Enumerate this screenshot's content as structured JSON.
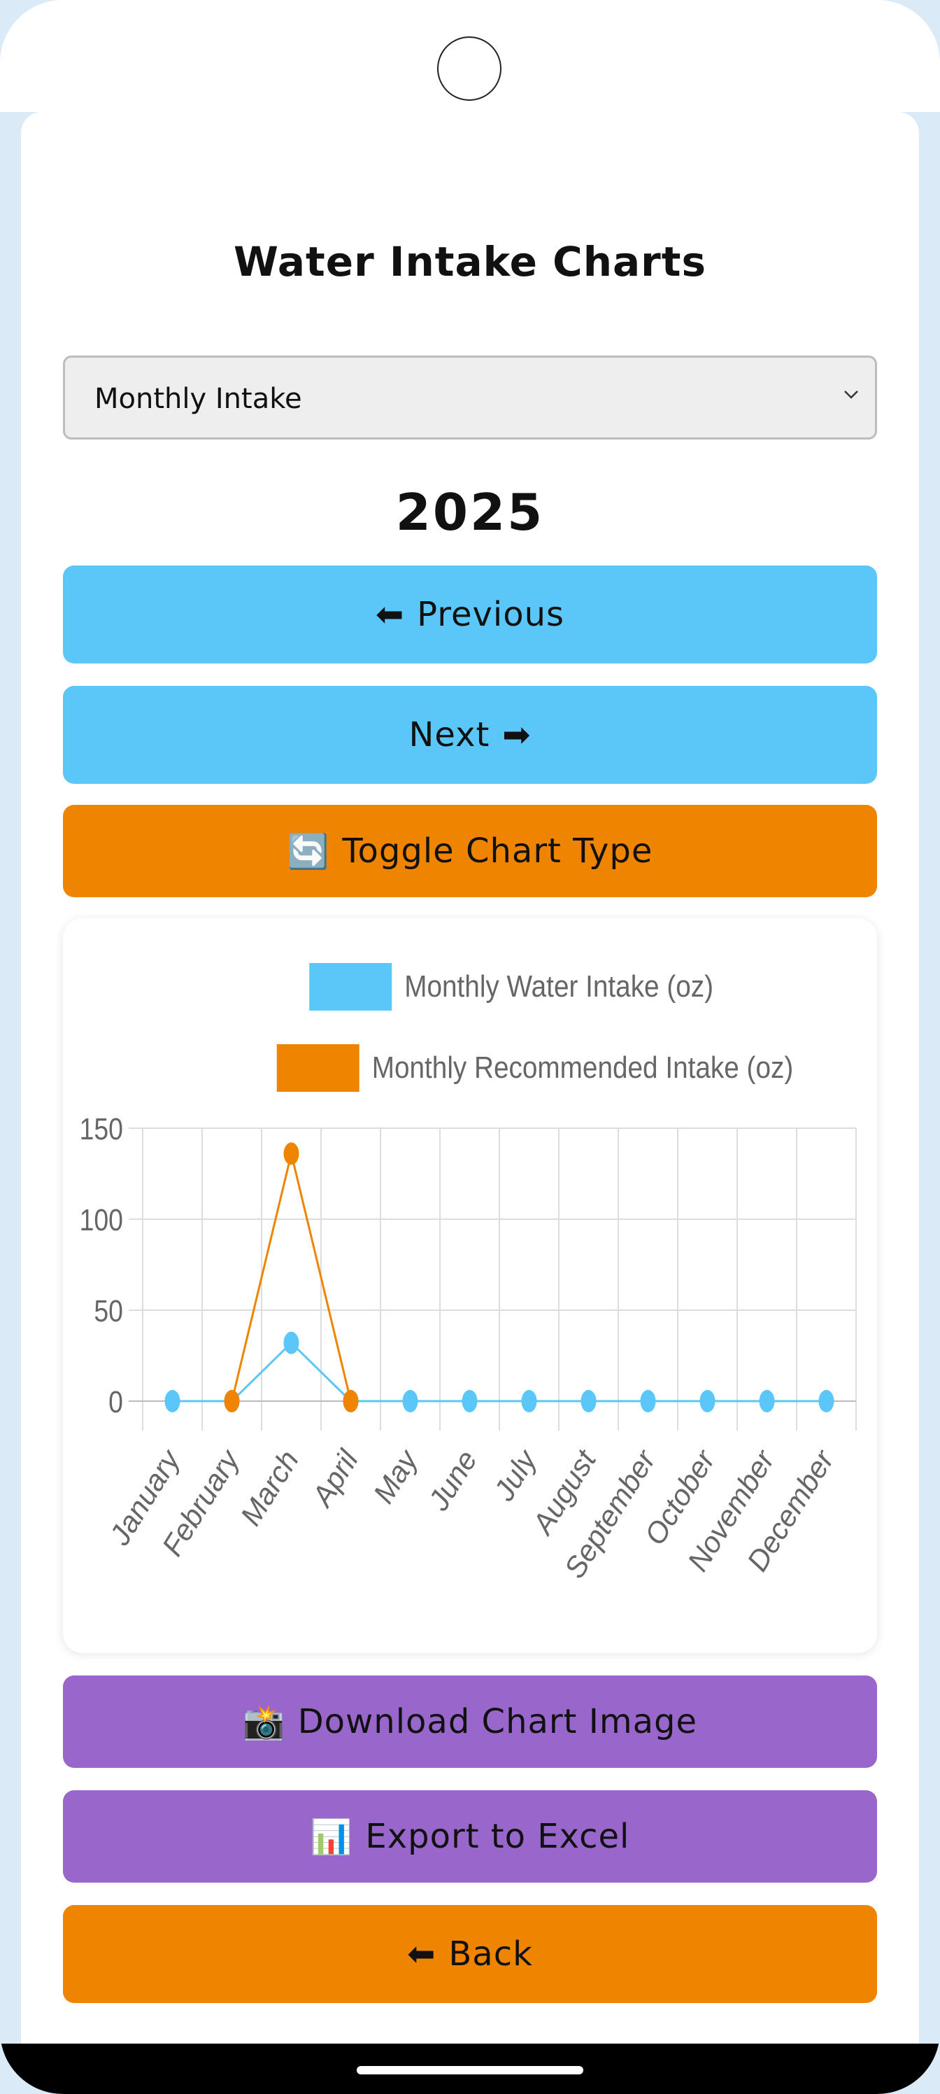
{
  "page": {
    "title": "Water Intake Charts",
    "view_select": {
      "selected": "Monthly Intake"
    },
    "year": "2025",
    "buttons": {
      "previous": {
        "icon": "⬅",
        "label": "Previous"
      },
      "next": {
        "label": "Next",
        "icon": "➡"
      },
      "toggle": {
        "icon": "🔄",
        "label": "Toggle Chart Type"
      },
      "download": {
        "icon": "📸",
        "label": "Download Chart Image"
      },
      "export": {
        "icon": "📊",
        "label": "Export to Excel"
      },
      "back": {
        "icon": "⬅",
        "label": "Back"
      }
    },
    "colors": {
      "blue": "#5bc6f8",
      "orange": "#ef8400",
      "purple": "#9966cc"
    }
  },
  "chart_data": {
    "type": "line",
    "legend_placement": "top",
    "grid": true,
    "categories": [
      "January",
      "February",
      "March",
      "April",
      "May",
      "June",
      "July",
      "August",
      "September",
      "October",
      "November",
      "December"
    ],
    "y_ticks": [
      "0",
      "50",
      "100",
      "150"
    ],
    "ylim": [
      0,
      150
    ],
    "series": [
      {
        "name": "Monthly Water Intake (oz)",
        "color": "#5bc6f8",
        "values": [
          0,
          0,
          32,
          0,
          0,
          0,
          0,
          0,
          0,
          0,
          0,
          0
        ]
      },
      {
        "name": "Monthly Recommended Intake (oz)",
        "color": "#ef8400",
        "values": [
          null,
          0,
          136,
          0,
          null,
          null,
          null,
          null,
          null,
          null,
          null,
          null
        ]
      }
    ]
  }
}
